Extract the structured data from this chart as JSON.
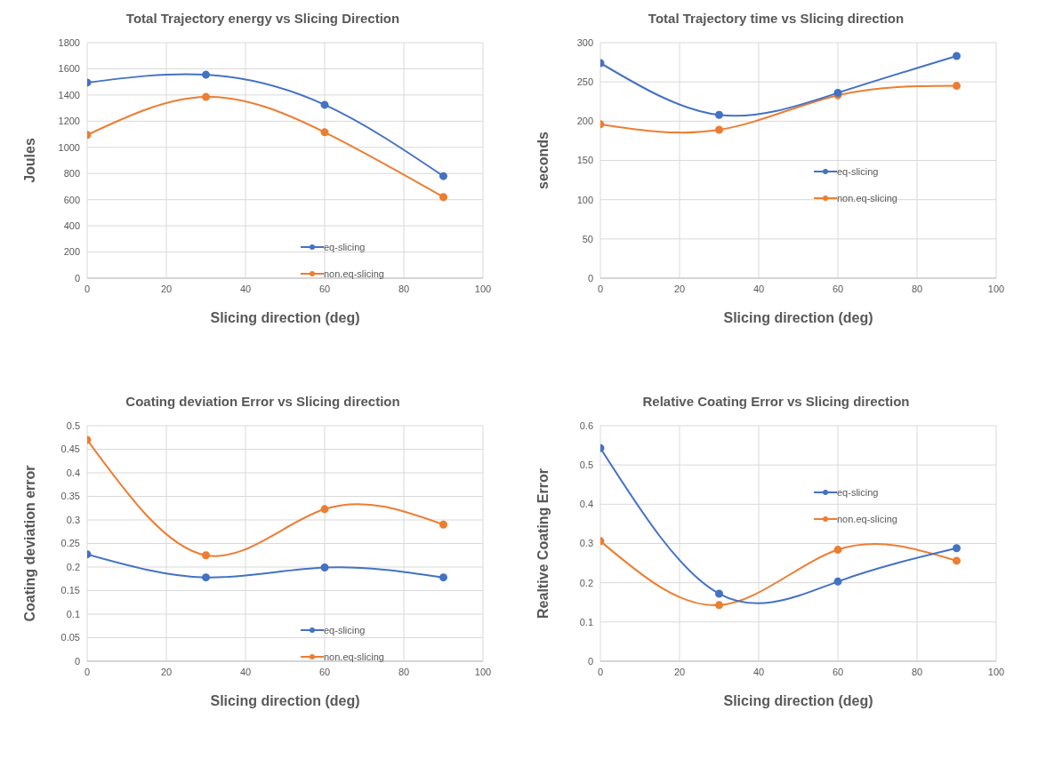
{
  "chart_data": [
    {
      "type": "line",
      "title": "Total Trajectory energy vs Slicing Direction",
      "xlabel": "Slicing direction (deg)",
      "ylabel": "Joules",
      "x": [
        0,
        30,
        60,
        90
      ],
      "xlim": [
        0,
        100
      ],
      "xticks": [
        0,
        20,
        40,
        60,
        80,
        100
      ],
      "ylim": [
        0,
        1800
      ],
      "yticks": [
        0,
        200,
        400,
        600,
        800,
        1000,
        1200,
        1400,
        1600,
        1800
      ],
      "grid": true,
      "marker": "circle",
      "legend": "bottom right",
      "series": [
        {
          "name": "eq-slicing",
          "color": "#4472c4",
          "values": [
            1495,
            1555,
            1325,
            780
          ]
        },
        {
          "name": "non.eq-slicing",
          "color": "#ed7d31",
          "values": [
            1095,
            1385,
            1115,
            620
          ]
        }
      ]
    },
    {
      "type": "line",
      "title": "Total Trajectory time vs Slicing direction",
      "xlabel": "Slicing direction (deg)",
      "ylabel": "seconds",
      "x": [
        0,
        30,
        60,
        90
      ],
      "xlim": [
        0,
        100
      ],
      "xticks": [
        0,
        20,
        40,
        60,
        80,
        100
      ],
      "ylim": [
        0,
        300
      ],
      "yticks": [
        0,
        50,
        100,
        150,
        200,
        250,
        300
      ],
      "grid": true,
      "marker": "circle",
      "legend": "right",
      "series": [
        {
          "name": "eq-slicing",
          "color": "#4472c4",
          "values": [
            274,
            208,
            236,
            283
          ]
        },
        {
          "name": "non.eq-slicing",
          "color": "#ed7d31",
          "values": [
            196,
            189,
            233,
            245
          ]
        }
      ]
    },
    {
      "type": "line",
      "title": "Coating deviation Error vs Slicing direction",
      "xlabel": "Slicing direction (deg)",
      "ylabel": "Coating deviation error",
      "x": [
        0,
        30,
        60,
        90
      ],
      "xlim": [
        0,
        100
      ],
      "xticks": [
        0,
        20,
        40,
        60,
        80,
        100
      ],
      "ylim": [
        0,
        0.5
      ],
      "yticks": [
        0,
        0.05,
        0.1,
        0.15,
        0.2,
        0.25,
        0.3,
        0.35,
        0.4,
        0.45,
        0.5
      ],
      "grid": true,
      "marker": "circle",
      "legend": "bottom right",
      "series": [
        {
          "name": "eq-slicing",
          "color": "#4472c4",
          "values": [
            0.227,
            0.178,
            0.199,
            0.178
          ]
        },
        {
          "name": "non.eq-slicing",
          "color": "#ed7d31",
          "values": [
            0.47,
            0.225,
            0.323,
            0.29
          ]
        }
      ]
    },
    {
      "type": "line",
      "title": "Relative Coating Error vs Slicing direction",
      "xlabel": "Slicing direction (deg)",
      "ylabel": "Realtive Coating Error",
      "x": [
        0,
        30,
        60,
        90
      ],
      "xlim": [
        0,
        100
      ],
      "xticks": [
        0,
        20,
        40,
        60,
        80,
        100
      ],
      "ylim": [
        0,
        0.6
      ],
      "yticks": [
        0,
        0.1,
        0.2,
        0.3,
        0.4,
        0.5,
        0.6
      ],
      "grid": true,
      "marker": "circle",
      "legend": "top right",
      "series": [
        {
          "name": "eq-slicing",
          "color": "#4472c4",
          "values": [
            0.543,
            0.172,
            0.203,
            0.288
          ]
        },
        {
          "name": "non.eq-slicing",
          "color": "#ed7d31",
          "values": [
            0.306,
            0.143,
            0.284,
            0.256
          ]
        }
      ]
    }
  ]
}
